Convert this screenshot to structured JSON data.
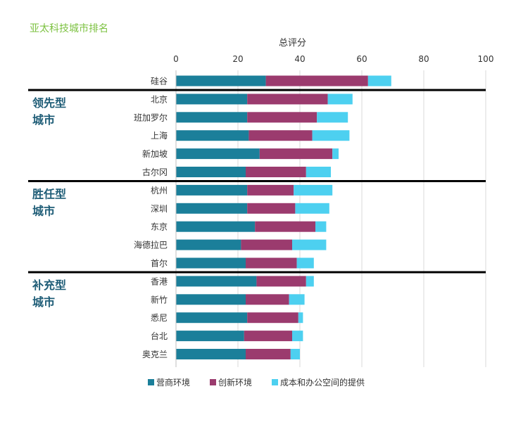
{
  "chart_data": {
    "type": "bar",
    "orientation": "horizontal",
    "stacked": true,
    "title": "亚太科技城市排名",
    "xlabel": "总评分",
    "xlim": [
      0,
      100
    ],
    "xticks": [
      0,
      20,
      40,
      60,
      80,
      100
    ],
    "grid": true,
    "legend_position": "bottom",
    "categories": [
      "硅谷",
      "北京",
      "班加罗尔",
      "上海",
      "新加坡",
      "古尔冈",
      "杭州",
      "深圳",
      "东京",
      "海德拉巴",
      "首尔",
      "香港",
      "新竹",
      "悉尼",
      "台北",
      "奥克兰"
    ],
    "groups": [
      {
        "label": "领先型城市",
        "label_lines": [
          "领先型",
          "城市"
        ],
        "start": 1,
        "end": 5
      },
      {
        "label": "胜任型城市",
        "label_lines": [
          "胜任型",
          "城市"
        ],
        "start": 6,
        "end": 10
      },
      {
        "label": "补充型城市",
        "label_lines": [
          "补充型",
          "城市"
        ],
        "start": 11,
        "end": 15
      }
    ],
    "series": [
      {
        "name": "营商环境",
        "color": "#1b7f9a",
        "values": [
          29,
          23,
          23,
          23.5,
          27,
          22.5,
          23,
          23,
          25.5,
          21,
          22.5,
          26,
          22.5,
          23,
          22,
          22.5
        ]
      },
      {
        "name": "创新环境",
        "color": "#9b3b6e",
        "values": [
          33,
          26,
          22.5,
          20.5,
          23.5,
          19.5,
          15,
          15.5,
          19.5,
          16.5,
          16.5,
          16,
          14,
          16.5,
          15.5,
          14.5
        ]
      },
      {
        "name": "成本和办公空间的提供",
        "color": "#4dd0f0",
        "values": [
          7.5,
          8,
          10,
          12,
          2,
          8,
          12.5,
          11,
          3.5,
          11,
          5.5,
          2.5,
          5,
          1.5,
          3.5,
          3
        ]
      }
    ]
  }
}
